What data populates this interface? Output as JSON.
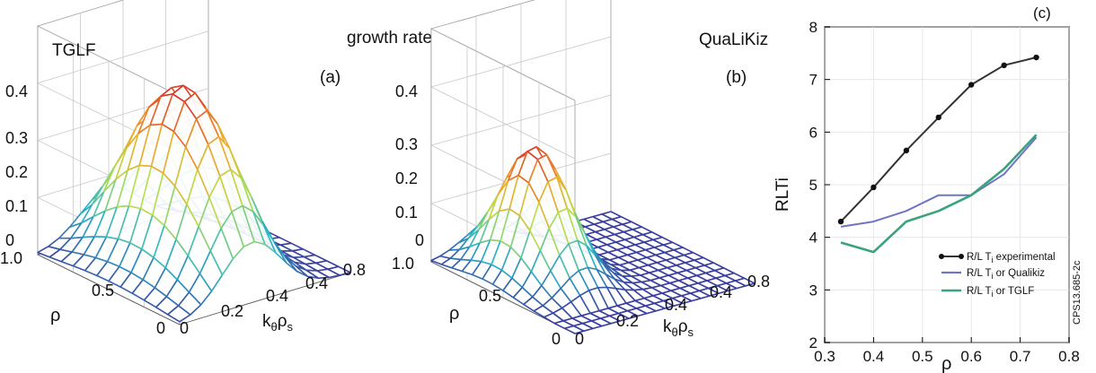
{
  "chart_data": [
    {
      "type": "surface3d",
      "panel_label": "(a)",
      "title": "TGLF",
      "shared_title": "growth rate",
      "z_ticks": [
        "0",
        "0.1",
        "0.2",
        "0.3",
        "0.4"
      ],
      "rho_ticks": [
        "0",
        "0.5",
        "1.0"
      ],
      "k_ticks": [
        "0",
        "0.2",
        "0.4",
        "0.4",
        "0.8"
      ],
      "ylabel": "ρ",
      "xlabel_main": "k",
      "xlabel_sub1": "θ",
      "xlabel_mid": "ρ",
      "xlabel_sub2": "s",
      "zlim": [
        0,
        0.4
      ],
      "peak_growth_rate": 0.32,
      "colormap": [
        "#3a3f9e",
        "#2bb5c9",
        "#b9e04a",
        "#f2a32a",
        "#d7302c"
      ]
    },
    {
      "type": "surface3d",
      "panel_label": "(b)",
      "title": "QuaLiKiz",
      "z_ticks": [
        "0",
        "0.1",
        "0.2",
        "0.3",
        "0.4"
      ],
      "rho_ticks": [
        "0",
        "0.5",
        "1.0"
      ],
      "k_ticks": [
        "0",
        "0.2",
        "0.4",
        "0.4",
        "0.8"
      ],
      "ylabel": "ρ",
      "xlabel_main": "k",
      "xlabel_sub1": "θ",
      "xlabel_mid": "ρ",
      "xlabel_sub2": "s",
      "zlim": [
        0,
        0.4
      ],
      "peak_growth_rate": 0.22,
      "colormap": [
        "#3a3f9e",
        "#2bb5c9",
        "#b9e04a",
        "#f2a32a",
        "#d7302c"
      ]
    },
    {
      "type": "line",
      "panel_label": "(c)",
      "xlabel": "ρ",
      "ylabel": "RLTi",
      "xlim": [
        0.3,
        0.8
      ],
      "ylim": [
        2,
        8
      ],
      "x_ticks": [
        0.3,
        0.4,
        0.5,
        0.6,
        0.7,
        0.8
      ],
      "y_ticks": [
        2,
        3,
        4,
        5,
        6,
        7,
        8
      ],
      "side_label": "CPS13.685-2c",
      "legend_position": "bottom-right",
      "series": [
        {
          "name": "R/L Ti experimental",
          "name_main": "R/L T",
          "name_sub": "i",
          "name_rest": " experimental",
          "color": "#333333",
          "markers": true,
          "x": [
            0.333,
            0.4,
            0.467,
            0.533,
            0.6,
            0.667,
            0.733
          ],
          "y": [
            4.3,
            4.95,
            5.65,
            6.28,
            6.9,
            7.27,
            7.42
          ]
        },
        {
          "name": "R/L Ti or Qualikiz",
          "name_main": "R/L T",
          "name_sub": "i",
          "name_rest": " or Qualikiz",
          "color": "#6f74c4",
          "markers": false,
          "x": [
            0.333,
            0.4,
            0.467,
            0.533,
            0.6,
            0.667,
            0.733
          ],
          "y": [
            4.2,
            4.3,
            4.5,
            4.8,
            4.8,
            5.2,
            5.9
          ]
        },
        {
          "name": "R/L Ti or TGLF",
          "name_main": "R/L T",
          "name_sub": "i",
          "name_rest": " or TGLF",
          "color": "#3aa37a",
          "markers": false,
          "x": [
            0.333,
            0.4,
            0.467,
            0.533,
            0.6,
            0.667,
            0.733
          ],
          "y": [
            3.9,
            3.72,
            4.3,
            4.5,
            4.8,
            5.3,
            5.95
          ]
        }
      ]
    }
  ]
}
